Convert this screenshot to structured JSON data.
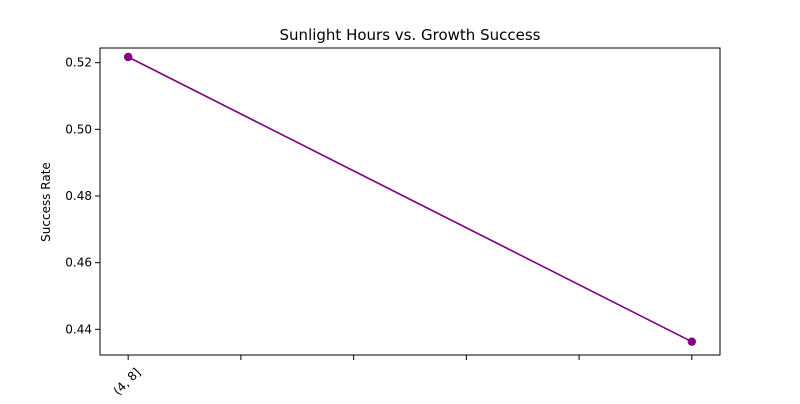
{
  "chart_data": {
    "type": "line",
    "title": "Sunlight Hours vs. Growth Success",
    "xlabel": "",
    "ylabel": "Success Rate",
    "categories": [
      "(4, 8]",
      "",
      "",
      "",
      "",
      ""
    ],
    "x": [
      0,
      5
    ],
    "series": [
      {
        "values": [
          0.5217,
          0.4363
        ],
        "color": "#800080",
        "marker": "circle"
      }
    ],
    "xlim": [
      -0.25,
      5.25
    ],
    "ylim": [
      0.4323,
      0.5244
    ],
    "yticks": [
      0.44,
      0.46,
      0.48,
      0.5,
      0.52
    ],
    "ytick_labels": [
      "0.44",
      "0.46",
      "0.48",
      "0.50",
      "0.52"
    ],
    "grid": false,
    "legend": "none"
  }
}
